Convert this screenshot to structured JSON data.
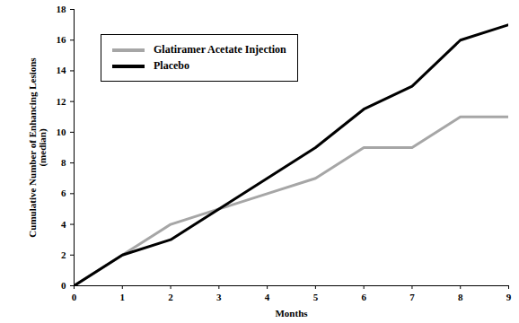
{
  "chart_data": {
    "type": "line",
    "x_label": "Months",
    "y_label": "Cumulative Number of Enhancing Lesions (median)",
    "x": [
      0,
      1,
      2,
      3,
      4,
      5,
      6,
      7,
      8,
      9
    ],
    "series": [
      {
        "name": "Glatiramer Acetate Injection",
        "color": "#a6a6a6",
        "values": [
          0,
          2,
          4,
          5,
          6,
          7,
          9,
          9,
          11,
          11
        ]
      },
      {
        "name": "Placebo",
        "color": "#000000",
        "values": [
          0,
          2,
          3,
          5,
          7,
          9,
          11.5,
          13,
          16,
          17
        ]
      }
    ],
    "xlim": [
      0,
      9
    ],
    "xticks": [
      0,
      1,
      2,
      3,
      4,
      5,
      6,
      7,
      8,
      9
    ],
    "ylim": [
      0,
      18
    ],
    "yticks": [
      0,
      2,
      4,
      6,
      8,
      10,
      12,
      14,
      16,
      18
    ],
    "legend": "upper left",
    "grid": false
  }
}
